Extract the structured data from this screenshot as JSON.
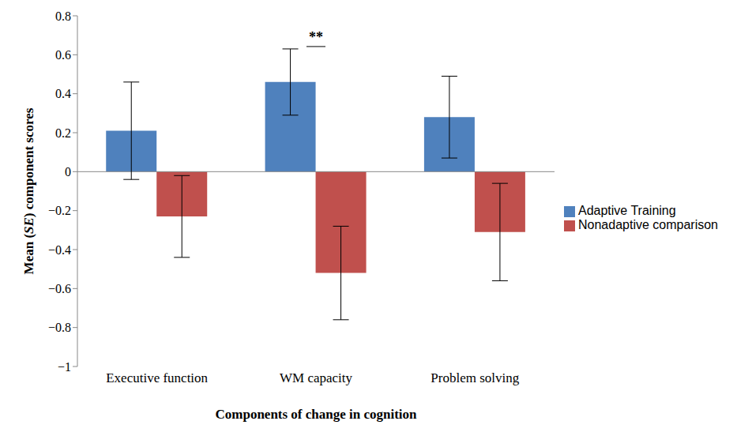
{
  "chart_data": {
    "type": "bar",
    "x_label": "Components of change in cognition",
    "y_label": "Mean (SE) component scores",
    "categories": [
      "Executive function",
      "WM capacity",
      "Problem solving"
    ],
    "series": [
      {
        "name": "Adaptive Training",
        "color": "#4f81bd",
        "values": [
          0.21,
          0.46,
          0.28
        ],
        "errors": [
          0.25,
          0.17,
          0.21
        ]
      },
      {
        "name": "Nonadaptive comparison",
        "color": "#c0504d",
        "values": [
          -0.23,
          -0.52,
          -0.31
        ],
        "errors": [
          0.21,
          0.24,
          0.25
        ]
      }
    ],
    "ylim": [
      -1,
      0.8
    ],
    "yticks": [
      {
        "value": -1,
        "label": "−1"
      },
      {
        "value": -0.8,
        "label": "−0.8"
      },
      {
        "value": -0.6,
        "label": "−0.6"
      },
      {
        "value": -0.4,
        "label": "−0.4"
      },
      {
        "value": -0.2,
        "label": "−0.2"
      },
      0,
      0.2,
      0.4,
      0.6,
      0.8
    ],
    "grid": false,
    "legend": "right",
    "annotations": [
      {
        "text": "**",
        "category": "WM capacity"
      }
    ]
  }
}
